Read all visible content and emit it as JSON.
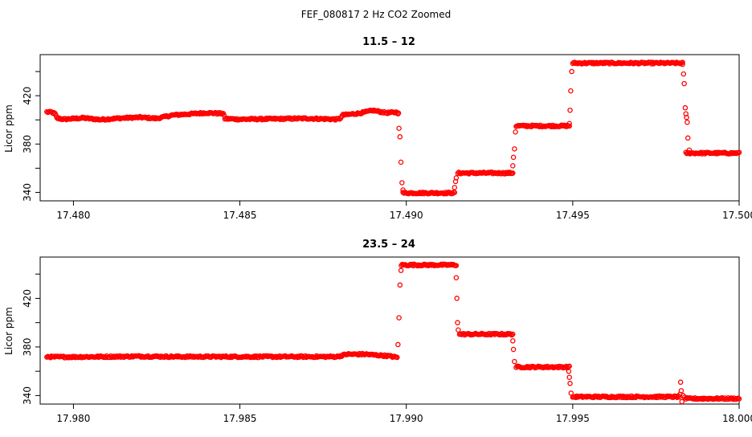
{
  "figure": {
    "title": "FEF_080817  2 Hz CO2 Zoomed",
    "colors": {
      "points": "#ff0000",
      "axes": "#000000",
      "background": "#ffffff"
    }
  },
  "chart_data": [
    {
      "type": "scatter",
      "title": "11.5 – 12",
      "xlabel": "",
      "ylabel": "Licor ppm",
      "xlim": [
        17.479,
        17.5
      ],
      "ylim": [
        333,
        454
      ],
      "xticks": [
        17.48,
        17.485,
        17.49,
        17.495,
        17.5
      ],
      "xtick_labels": [
        "17.480",
        "17.485",
        "17.490",
        "17.495",
        "17.500"
      ],
      "yticks": [
        340,
        360,
        380,
        400,
        420,
        440
      ],
      "ytick_labels": [
        "340",
        "",
        "380",
        "",
        "420",
        ""
      ],
      "grid": false,
      "legend": "none",
      "profile": [
        [
          17.4792,
          406.5
        ],
        [
          17.47935,
          406.3
        ],
        [
          17.47945,
          405.0
        ],
        [
          17.4795,
          401.5
        ],
        [
          17.4797,
          400.5
        ],
        [
          17.4803,
          401.6
        ],
        [
          17.4808,
          400.2
        ],
        [
          17.4814,
          401.4
        ],
        [
          17.482,
          402.1
        ],
        [
          17.4825,
          401.2
        ],
        [
          17.483,
          404.0
        ],
        [
          17.484,
          405.8
        ],
        [
          17.4845,
          405.2
        ],
        [
          17.48455,
          401.0
        ],
        [
          17.485,
          400.5
        ],
        [
          17.486,
          400.8
        ],
        [
          17.487,
          401.2
        ],
        [
          17.4879,
          400.5
        ],
        [
          17.488,
          401.0
        ],
        [
          17.4881,
          404.0
        ],
        [
          17.4886,
          405.5
        ],
        [
          17.489,
          407.8
        ],
        [
          17.4894,
          405.8
        ],
        [
          17.4897,
          406.2
        ],
        [
          17.4898,
          406.3
        ]
      ],
      "segments": [
        {
          "x_start": 17.4899,
          "x_end": 17.49145,
          "y": 339.5
        },
        {
          "x_start": 17.49155,
          "x_end": 17.4932,
          "y": 356.0
        },
        {
          "x_start": 17.4933,
          "x_end": 17.4949,
          "y": 395.0
        },
        {
          "x_start": 17.495,
          "x_end": 17.4983,
          "y": 447.0
        },
        {
          "x_start": 17.4984,
          "x_end": 17.5,
          "y": 372.5
        }
      ],
      "transitions": [
        {
          "x": 17.48975,
          "y": 405.0
        },
        {
          "x": 17.48978,
          "y": 393.0
        },
        {
          "x": 17.48981,
          "y": 386.0
        },
        {
          "x": 17.48984,
          "y": 365.0
        },
        {
          "x": 17.48987,
          "y": 348.0
        },
        {
          "x": 17.4899,
          "y": 342.0
        },
        {
          "x": 17.49145,
          "y": 344.0
        },
        {
          "x": 17.49148,
          "y": 349.0
        },
        {
          "x": 17.4915,
          "y": 352.0
        },
        {
          "x": 17.4932,
          "y": 362.0
        },
        {
          "x": 17.49322,
          "y": 369.0
        },
        {
          "x": 17.49325,
          "y": 376.0
        },
        {
          "x": 17.49328,
          "y": 390.0
        },
        {
          "x": 17.4949,
          "y": 397.0
        },
        {
          "x": 17.49492,
          "y": 408.0
        },
        {
          "x": 17.49494,
          "y": 424.0
        },
        {
          "x": 17.49497,
          "y": 440.0
        },
        {
          "x": 17.4983,
          "y": 446.0
        },
        {
          "x": 17.49833,
          "y": 438.0
        },
        {
          "x": 17.49835,
          "y": 430.0
        },
        {
          "x": 17.49838,
          "y": 410.0
        },
        {
          "x": 17.4984,
          "y": 405.0
        },
        {
          "x": 17.49842,
          "y": 402.0
        },
        {
          "x": 17.49844,
          "y": 398.0
        },
        {
          "x": 17.49846,
          "y": 385.0
        },
        {
          "x": 17.4985,
          "y": 375.0
        }
      ]
    },
    {
      "type": "scatter",
      "title": "23.5 – 24",
      "xlabel": "",
      "ylabel": "Licor ppm",
      "xlim": [
        17.979,
        18.0
      ],
      "ylim": [
        333,
        454
      ],
      "xticks": [
        17.98,
        17.985,
        17.99,
        17.995,
        18.0
      ],
      "xtick_labels": [
        "17.980",
        "17.985",
        "17.990",
        "17.995",
        "18.000"
      ],
      "yticks": [
        340,
        360,
        380,
        400,
        420,
        440
      ],
      "ytick_labels": [
        "340",
        "",
        "380",
        "",
        "420",
        ""
      ],
      "grid": false,
      "legend": "none",
      "profile": [
        [
          17.9792,
          372.0
        ],
        [
          17.9794,
          371.8
        ],
        [
          17.98,
          371.8
        ],
        [
          17.981,
          372.0
        ],
        [
          17.982,
          372.3
        ],
        [
          17.983,
          372.0
        ],
        [
          17.985,
          372.0
        ],
        [
          17.987,
          372.0
        ],
        [
          17.9879,
          372.0
        ],
        [
          17.988,
          372.5
        ],
        [
          17.9882,
          374.0
        ],
        [
          17.9888,
          374.0
        ],
        [
          17.989,
          373.5
        ],
        [
          17.9895,
          372.5
        ],
        [
          17.9897,
          371.5
        ],
        [
          17.98975,
          371.5
        ]
      ],
      "segments": [
        {
          "x_start": 17.98985,
          "x_end": 17.9915,
          "y": 447.5
        },
        {
          "x_start": 17.9916,
          "x_end": 17.9932,
          "y": 390.5
        },
        {
          "x_start": 17.9933,
          "x_end": 17.9949,
          "y": 363.5
        },
        {
          "x_start": 17.995,
          "x_end": 17.9982,
          "y": 339.0
        },
        {
          "x_start": 17.9984,
          "x_end": 18.0,
          "y": 337.5
        }
      ],
      "transitions": [
        {
          "x": 17.98975,
          "y": 382.0
        },
        {
          "x": 17.98978,
          "y": 404.0
        },
        {
          "x": 17.98981,
          "y": 431.0
        },
        {
          "x": 17.98984,
          "y": 443.0
        },
        {
          "x": 17.9915,
          "y": 437.0
        },
        {
          "x": 17.99152,
          "y": 420.0
        },
        {
          "x": 17.99154,
          "y": 400.0
        },
        {
          "x": 17.99156,
          "y": 394.0
        },
        {
          "x": 17.9932,
          "y": 385.0
        },
        {
          "x": 17.99322,
          "y": 378.0
        },
        {
          "x": 17.99325,
          "y": 368.0
        },
        {
          "x": 17.99488,
          "y": 360.0
        },
        {
          "x": 17.9949,
          "y": 355.0
        },
        {
          "x": 17.99492,
          "y": 350.0
        },
        {
          "x": 17.99495,
          "y": 342.0
        },
        {
          "x": 17.99822,
          "y": 341.0
        },
        {
          "x": 17.99824,
          "y": 351.0
        },
        {
          "x": 17.99826,
          "y": 344.0
        },
        {
          "x": 17.99828,
          "y": 335.0
        },
        {
          "x": 17.99832,
          "y": 340.0
        },
        {
          "x": 17.99836,
          "y": 338.5
        }
      ]
    }
  ]
}
